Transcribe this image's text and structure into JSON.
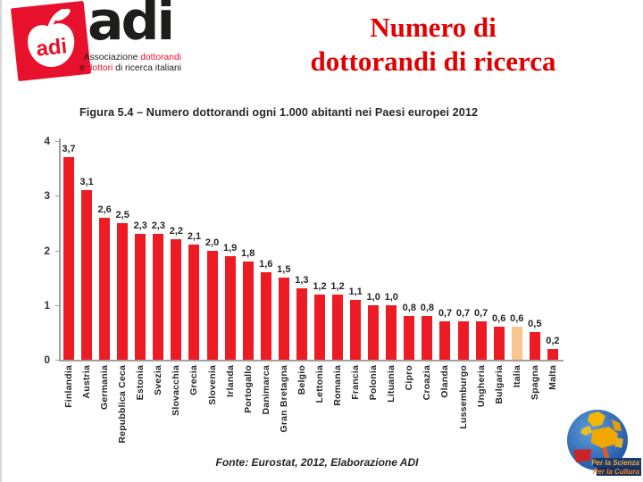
{
  "logo": {
    "badge_text": "adi",
    "brand_text": "adi",
    "tagline1_black": "Associazione",
    "tagline1_red": "dottorandi",
    "tagline2_a": "e",
    "tagline2_red": "dottori",
    "tagline2_b": "di ricerca italiani",
    "red": "#e8112d"
  },
  "header": {
    "title_line1": "Numero di",
    "title_line2": "dottorandi di ricerca",
    "title_color": "#e10000"
  },
  "chart_data": {
    "type": "bar",
    "title": "Figura 5.4 – Numero dottorandi ogni 1.000 abitanti nei Paesi europei 2012",
    "categories": [
      "Finlandia",
      "Austria",
      "Germania",
      "Repubblica Ceca",
      "Estonia",
      "Svezia",
      "Slovacchia",
      "Grecia",
      "Slovenia",
      "Irlanda",
      "Portogallo",
      "Danimarca",
      "Gran Bretagna",
      "Belgio",
      "Lettonia",
      "Romania",
      "Francia",
      "Polonia",
      "Lituania",
      "Cipro",
      "Croazia",
      "Olanda",
      "Lussemburgo",
      "Ungheria",
      "Bulgaria",
      "Italia",
      "Spagna",
      "Malta"
    ],
    "values": [
      3.7,
      3.1,
      2.6,
      2.5,
      2.3,
      2.3,
      2.2,
      2.1,
      2.0,
      1.9,
      1.8,
      1.6,
      1.5,
      1.3,
      1.2,
      1.2,
      1.1,
      1.0,
      1.0,
      0.8,
      0.8,
      0.7,
      0.7,
      0.7,
      0.6,
      0.6,
      0.5,
      0.2
    ],
    "value_labels": [
      "3,7",
      "3,1",
      "2,6",
      "2,5",
      "2,3",
      "2,3",
      "2,2",
      "2,1",
      "2,0",
      "1,9",
      "1,8",
      "1,6",
      "1,5",
      "1,3",
      "1,2",
      "1,2",
      "1,1",
      "1,0",
      "1,0",
      "0,8",
      "0,8",
      "0,7",
      "0,7",
      "0,7",
      "0,6",
      "0,6",
      "0,5",
      "0,2"
    ],
    "highlight_category": "Italia",
    "bar_color": "#ed1c24",
    "highlight_color": "#f9c58f",
    "xlabel": "",
    "ylabel": "",
    "ylim": [
      0,
      4
    ],
    "yticks": [
      "0",
      "1",
      "2",
      "3",
      "4"
    ],
    "grid": false,
    "legend": null
  },
  "footer": {
    "source": "Fonte: Eurostat, 2012, Elaborazione ADI"
  },
  "globe_badge": {
    "line1": "Per la Scienza",
    "line2": "Per la Cultura"
  }
}
